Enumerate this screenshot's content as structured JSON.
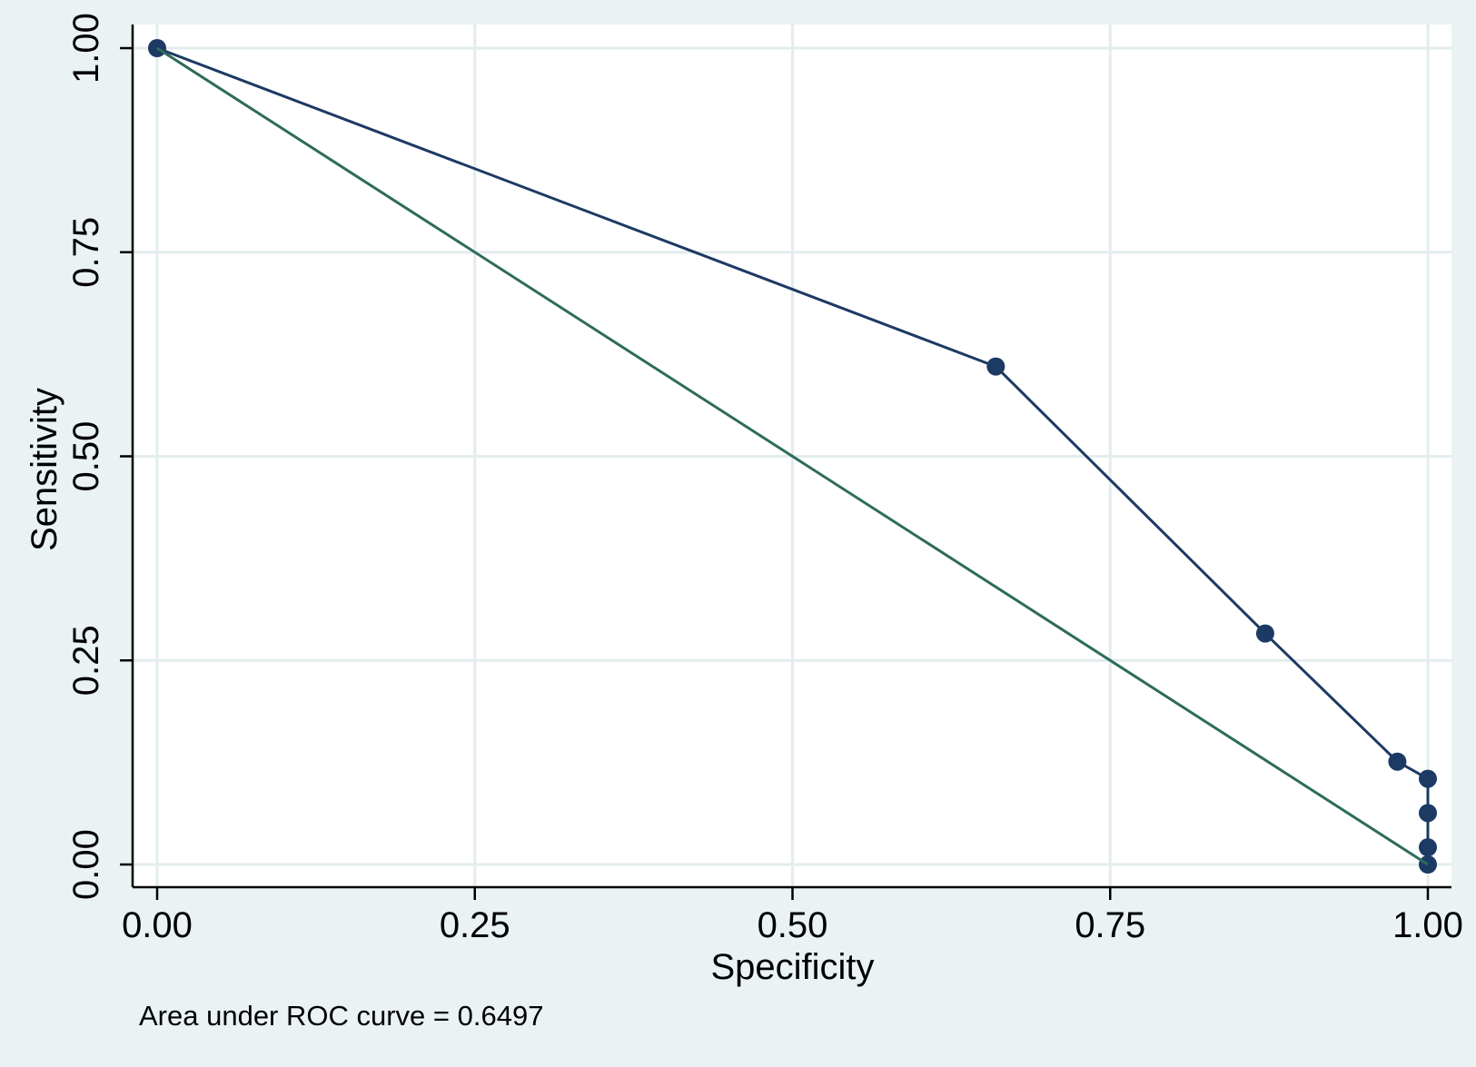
{
  "chart_data": {
    "type": "line",
    "xlabel": "Specificity",
    "ylabel": "Sensitivity",
    "xlim": [
      0,
      1
    ],
    "ylim": [
      0,
      1
    ],
    "x_reversed": false,
    "x_ticks": [
      "0.00",
      "0.25",
      "0.50",
      "0.75",
      "1.00"
    ],
    "y_ticks": [
      "0.00",
      "0.25",
      "0.50",
      "0.75",
      "1.00"
    ],
    "x_tick_values": [
      0,
      0.25,
      0.5,
      0.75,
      1
    ],
    "y_tick_values": [
      0,
      0.25,
      0.5,
      0.75,
      1
    ],
    "grid": true,
    "series": [
      {
        "role": "roc-curve",
        "color": "#1c3a63",
        "markers": true,
        "points": [
          {
            "x": 0.0,
            "y": 1.0
          },
          {
            "x": 0.66,
            "y": 0.61
          },
          {
            "x": 0.872,
            "y": 0.283
          },
          {
            "x": 0.976,
            "y": 0.126
          },
          {
            "x": 1.0,
            "y": 0.105
          },
          {
            "x": 1.0,
            "y": 0.063
          },
          {
            "x": 1.0,
            "y": 0.021
          },
          {
            "x": 1.0,
            "y": 0.0
          }
        ]
      },
      {
        "role": "reference-line",
        "color": "#2e6b5a",
        "markers": false,
        "points": [
          {
            "x": 0.0,
            "y": 1.0
          },
          {
            "x": 1.0,
            "y": 0.0
          }
        ]
      }
    ],
    "note": "Area under ROC curve = 0.6497"
  },
  "colors": {
    "background": "#eaf2f3",
    "plot_area": "#ffffff",
    "grid": "#e3ecee",
    "axis": "#000000"
  }
}
